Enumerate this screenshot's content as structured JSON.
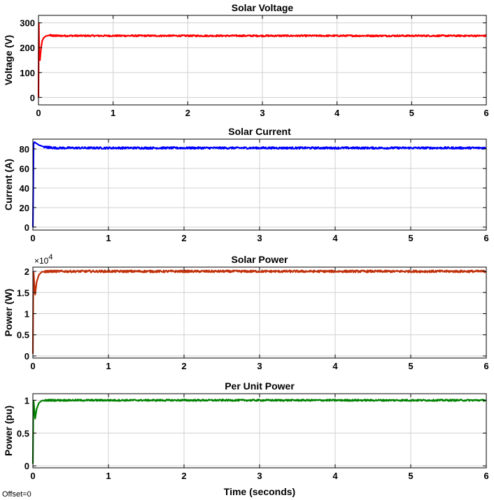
{
  "figure": {
    "offset_text": "Offset=0",
    "xlabel": "Time (seconds)"
  },
  "chart_data": [
    {
      "type": "line",
      "title": "Solar Voltage",
      "xlabel": "",
      "ylabel": "Voltage (V)",
      "xlim": [
        0,
        6
      ],
      "ylim": [
        -30,
        330
      ],
      "xticks": [
        0,
        1,
        2,
        3,
        4,
        5,
        6
      ],
      "yticks": [
        0,
        100,
        200,
        300
      ],
      "ytick_labels": [
        "0",
        "100",
        "200",
        "300"
      ],
      "grid": true,
      "color": "#ff0000",
      "series": [
        {
          "x": [
            0,
            0.005,
            0.01,
            0.02,
            0.03,
            0.04,
            0.05,
            0.07,
            0.1,
            0.15,
            0.2,
            0.5,
            1,
            1.5,
            2,
            2.5,
            3,
            3.5,
            4,
            4.5,
            5,
            5.5,
            6
          ],
          "values": [
            0,
            300,
            180,
            150,
            185,
            210,
            228,
            240,
            247,
            250,
            248,
            248,
            248,
            248,
            248,
            248,
            248,
            248,
            248,
            248,
            248,
            248,
            248
          ],
          "noise": 3
        }
      ]
    },
    {
      "type": "line",
      "title": "Solar Current",
      "xlabel": "",
      "ylabel": "Current (A)",
      "xlim": [
        0,
        6
      ],
      "ylim": [
        -3,
        90
      ],
      "xticks": [
        0,
        1,
        2,
        3,
        4,
        5,
        6
      ],
      "yticks": [
        0,
        20,
        40,
        60,
        80
      ],
      "ytick_labels": [
        "0",
        "20",
        "40",
        "60",
        "80"
      ],
      "grid": true,
      "color": "#0000ff",
      "series": [
        {
          "x": [
            0,
            0.005,
            0.01,
            0.02,
            0.04,
            0.08,
            0.15,
            0.3,
            1,
            2,
            3,
            4,
            5,
            6
          ],
          "values": [
            0,
            40,
            85,
            87,
            86,
            84,
            82,
            81,
            81,
            81,
            81,
            81,
            81,
            81
          ],
          "noise": 1
        }
      ]
    },
    {
      "type": "line",
      "title": "Solar Power",
      "xlabel": "",
      "ylabel": "Power (W)",
      "xlim": [
        0,
        6
      ],
      "ylim": [
        -500,
        21000
      ],
      "xticks": [
        0,
        1,
        2,
        3,
        4,
        5,
        6
      ],
      "yticks": [
        0,
        5000,
        10000,
        15000,
        20000
      ],
      "ytick_labels": [
        "0",
        "0.5",
        "1",
        "1.5",
        "2"
      ],
      "y_exponent_label": "×10",
      "y_exponent_power": "4",
      "grid": true,
      "color": "#c0300a",
      "series": [
        {
          "x": [
            0,
            0.005,
            0.01,
            0.02,
            0.03,
            0.05,
            0.08,
            0.12,
            0.2,
            1,
            2,
            3,
            4,
            5,
            6
          ],
          "values": [
            500,
            15000,
            19800,
            17000,
            14500,
            17500,
            19200,
            19900,
            20000,
            20000,
            20000,
            20000,
            20000,
            20000,
            20000
          ],
          "noise": 250
        }
      ]
    },
    {
      "type": "line",
      "title": "Per Unit Power",
      "xlabel": "Time (seconds)",
      "ylabel": "Power (pu)",
      "xlim": [
        0,
        6
      ],
      "ylim": [
        -0.03,
        1.1
      ],
      "xticks": [
        0,
        1,
        2,
        3,
        4,
        5,
        6
      ],
      "yticks": [
        0,
        0.5,
        1
      ],
      "ytick_labels": [
        "0",
        "0.5",
        "1"
      ],
      "grid": true,
      "color": "#008000",
      "series": [
        {
          "x": [
            0,
            0.005,
            0.01,
            0.02,
            0.03,
            0.05,
            0.08,
            0.12,
            0.2,
            1,
            2,
            3,
            4,
            5,
            6
          ],
          "values": [
            0.03,
            0.75,
            0.99,
            0.85,
            0.72,
            0.87,
            0.96,
            0.995,
            1.0,
            1.0,
            1.0,
            1.0,
            1.0,
            1.0,
            1.0
          ],
          "noise": 0.012
        }
      ]
    }
  ]
}
